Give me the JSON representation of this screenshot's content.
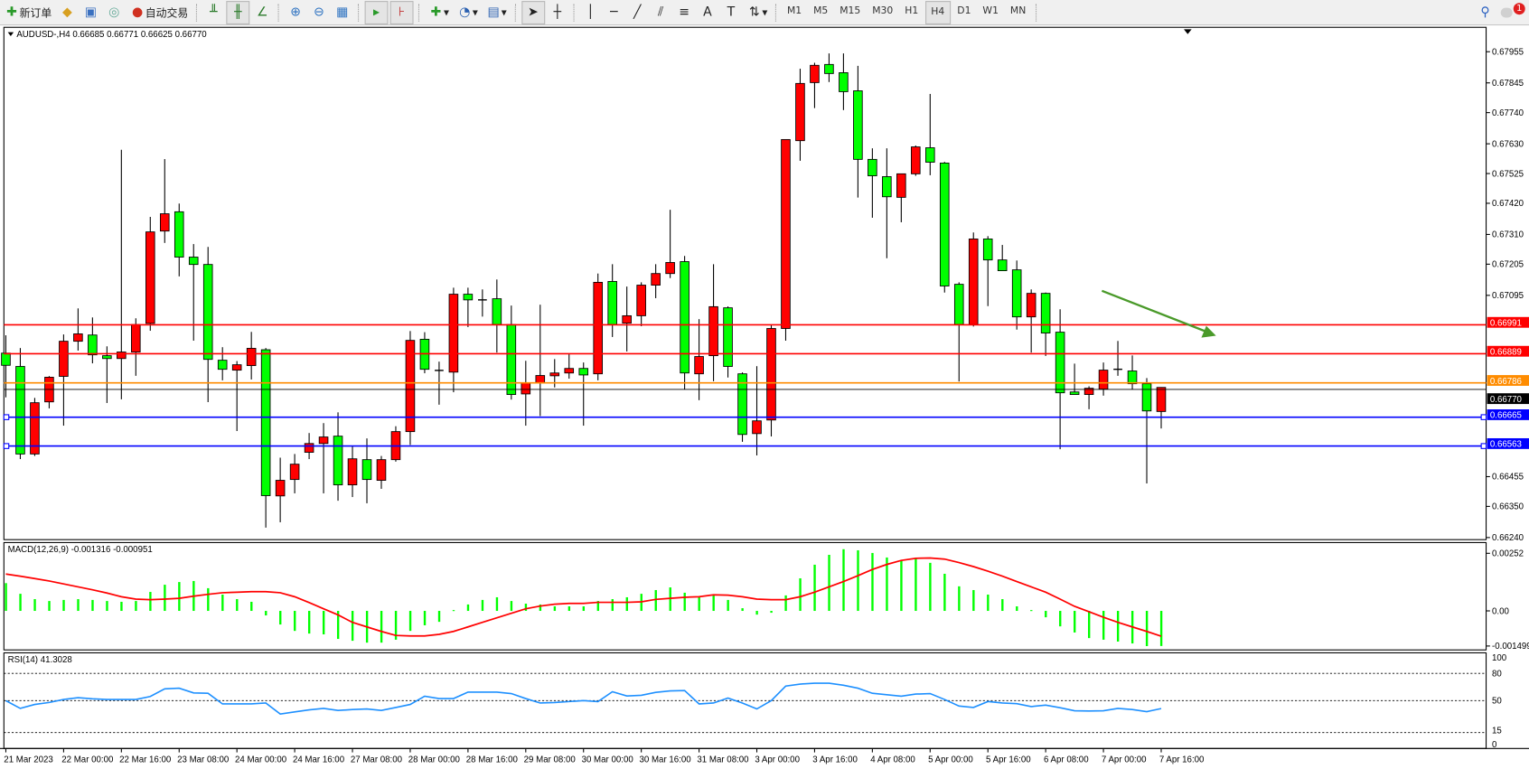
{
  "toolbar": {
    "new_order": "新订单",
    "auto_trading": "自动交易",
    "timeframes": [
      "M1",
      "M5",
      "M15",
      "M30",
      "H1",
      "H4",
      "D1",
      "W1",
      "MN"
    ],
    "active_timeframe": "H4",
    "line_tool_text": "A",
    "notification_count": "1",
    "icons": [
      "new-order-icon",
      "gold-icon",
      "tester-icon",
      "signal-icon",
      "auto-trading-icon",
      "bar-chart-icon",
      "candlestick-icon",
      "line-chart-icon",
      "zoom-in-icon",
      "zoom-out-icon",
      "tile-windows-icon",
      "autoscroll-icon",
      "chart-shift-icon",
      "indicators-icon",
      "periods-icon",
      "templates-icon",
      "cursor-icon",
      "crosshair-icon",
      "vertical-line-icon",
      "horizontal-line-icon",
      "trendline-icon",
      "equidistant-channel-icon",
      "fibonacci-icon",
      "text-icon",
      "text-label-icon",
      "arrows-icon",
      "search-icon",
      "notification-icon"
    ]
  },
  "chart": {
    "header": "AUDUSD-,H4  0.66685 0.66771 0.66625 0.66770",
    "price_labels": [
      "0.67955",
      "0.67845",
      "0.67740",
      "0.67630",
      "0.67525",
      "0.67420",
      "0.67310",
      "0.67205",
      "0.67095",
      "0.66455",
      "0.66350",
      "0.66240"
    ],
    "levels": [
      {
        "price": 0.66991,
        "label": "0.66991",
        "color": "#ff0000"
      },
      {
        "price": 0.66889,
        "label": "0.66889",
        "color": "#ff0000"
      },
      {
        "price": 0.66786,
        "label": "0.66786",
        "color": "#ff8c00"
      },
      {
        "price": 0.66665,
        "label": "0.66665",
        "color": "#0000ff"
      },
      {
        "price": 0.66563,
        "label": "0.66563",
        "color": "#0000ff"
      }
    ],
    "bid": {
      "price": 0.6677,
      "label": "0.66770",
      "color": "#000000"
    },
    "arrow_color": "#4a9a2a",
    "bull_color": "#ff0000",
    "bear_color": "#00ff00",
    "time_labels": [
      "21 Mar 2023",
      "22 Mar 00:00",
      "22 Mar 16:00",
      "23 Mar 08:00",
      "24 Mar 00:00",
      "24 Mar 16:00",
      "27 Mar 08:00",
      "28 Mar 00:00",
      "28 Mar 16:00",
      "29 Mar 08:00",
      "30 Mar 00:00",
      "30 Mar 16:00",
      "31 Mar 08:00",
      "3 Apr 00:00",
      "3 Apr 16:00",
      "4 Apr 08:00",
      "5 Apr 00:00",
      "5 Apr 16:00",
      "6 Apr 08:00",
      "7 Apr 00:00",
      "7 Apr 16:00"
    ]
  },
  "macd": {
    "label": "MACD(12,26,9) -0.001316 -0.000951",
    "axis_labels": [
      "0.00252",
      "0.00",
      "-0.001499"
    ]
  },
  "rsi": {
    "label": "RSI(14) 41.3028",
    "axis_labels": [
      "100",
      "80",
      "50",
      "15",
      "0"
    ]
  },
  "chart_data": {
    "type": "candlestick",
    "symbol": "AUDUSD-",
    "timeframe": "H4",
    "ylim": [
      0.6624,
      0.68
    ],
    "ohlc": [
      [
        0.66891,
        0.66954,
        0.66735,
        0.66848
      ],
      [
        0.66844,
        0.66909,
        0.66517,
        0.66535
      ],
      [
        0.66535,
        0.66733,
        0.66528,
        0.66716
      ],
      [
        0.66719,
        0.6681,
        0.66696,
        0.66806
      ],
      [
        0.66809,
        0.66957,
        0.66635,
        0.66933
      ],
      [
        0.66933,
        0.67049,
        0.669,
        0.66959
      ],
      [
        0.66955,
        0.67017,
        0.66855,
        0.66885
      ],
      [
        0.66882,
        0.66915,
        0.66715,
        0.66872
      ],
      [
        0.66872,
        0.67609,
        0.66728,
        0.66895
      ],
      [
        0.66895,
        0.67014,
        0.66811,
        0.66992
      ],
      [
        0.66996,
        0.67372,
        0.6697,
        0.67319
      ],
      [
        0.67322,
        0.67576,
        0.6728,
        0.67383
      ],
      [
        0.6739,
        0.67419,
        0.67162,
        0.6723
      ],
      [
        0.6723,
        0.67276,
        0.66935,
        0.67204
      ],
      [
        0.67204,
        0.67266,
        0.66718,
        0.66869
      ],
      [
        0.66866,
        0.66912,
        0.66795,
        0.66834
      ],
      [
        0.66831,
        0.66863,
        0.66616,
        0.6685
      ],
      [
        0.66847,
        0.66966,
        0.66798,
        0.66908
      ],
      [
        0.66903,
        0.66909,
        0.66275,
        0.66388
      ],
      [
        0.66387,
        0.66522,
        0.66294,
        0.66442
      ],
      [
        0.66445,
        0.66535,
        0.66396,
        0.66499
      ],
      [
        0.66541,
        0.66609,
        0.66517,
        0.66572
      ],
      [
        0.66572,
        0.66644,
        0.66396,
        0.66595
      ],
      [
        0.66598,
        0.66682,
        0.6637,
        0.66426
      ],
      [
        0.66426,
        0.66563,
        0.66383,
        0.66518
      ],
      [
        0.66515,
        0.6659,
        0.66361,
        0.66445
      ],
      [
        0.66442,
        0.66528,
        0.66412,
        0.66515
      ],
      [
        0.66515,
        0.66633,
        0.66508,
        0.66614
      ],
      [
        0.66614,
        0.66969,
        0.66567,
        0.66936
      ],
      [
        0.6694,
        0.66965,
        0.6682,
        0.66834
      ],
      [
        0.6683,
        0.66861,
        0.66709,
        0.6683
      ],
      [
        0.66824,
        0.67122,
        0.66753,
        0.67099
      ],
      [
        0.67099,
        0.67122,
        0.66983,
        0.67079
      ],
      [
        0.67079,
        0.67116,
        0.6702,
        0.67079
      ],
      [
        0.67083,
        0.67151,
        0.66893,
        0.66992
      ],
      [
        0.66992,
        0.67059,
        0.66727,
        0.66745
      ],
      [
        0.66747,
        0.66864,
        0.66635,
        0.66786
      ],
      [
        0.66786,
        0.67062,
        0.66669,
        0.66812
      ],
      [
        0.66811,
        0.6687,
        0.6677,
        0.66821
      ],
      [
        0.66821,
        0.66887,
        0.66801,
        0.66837
      ],
      [
        0.66837,
        0.66858,
        0.66635,
        0.66814
      ],
      [
        0.66818,
        0.67172,
        0.66795,
        0.67141
      ],
      [
        0.67144,
        0.67205,
        0.66948,
        0.66992
      ],
      [
        0.66997,
        0.67126,
        0.66897,
        0.67023
      ],
      [
        0.67023,
        0.67141,
        0.66986,
        0.67131
      ],
      [
        0.67131,
        0.67205,
        0.67085,
        0.67172
      ],
      [
        0.67172,
        0.67397,
        0.67156,
        0.67211
      ],
      [
        0.67214,
        0.67234,
        0.66763,
        0.66821
      ],
      [
        0.66818,
        0.67011,
        0.66725,
        0.66879
      ],
      [
        0.66882,
        0.67205,
        0.66792,
        0.67055
      ],
      [
        0.67051,
        0.67056,
        0.66805,
        0.66844
      ],
      [
        0.66818,
        0.66823,
        0.66578,
        0.66604
      ],
      [
        0.66607,
        0.66845,
        0.6653,
        0.66652
      ],
      [
        0.66655,
        0.66991,
        0.66597,
        0.66978
      ],
      [
        0.66978,
        0.67645,
        0.66935,
        0.67645
      ],
      [
        0.67641,
        0.67895,
        0.6757,
        0.67843
      ],
      [
        0.67846,
        0.67916,
        0.67756,
        0.67907
      ],
      [
        0.6791,
        0.67949,
        0.67848,
        0.67878
      ],
      [
        0.67881,
        0.67949,
        0.67749,
        0.67814
      ],
      [
        0.67817,
        0.67905,
        0.6744,
        0.67575
      ],
      [
        0.67575,
        0.67614,
        0.67369,
        0.67517
      ],
      [
        0.67514,
        0.67614,
        0.67226,
        0.67443
      ],
      [
        0.67441,
        0.67524,
        0.67353,
        0.67524
      ],
      [
        0.67524,
        0.67624,
        0.67517,
        0.67619
      ],
      [
        0.67616,
        0.67806,
        0.67519,
        0.67565
      ],
      [
        0.67562,
        0.67566,
        0.67105,
        0.67128
      ],
      [
        0.67134,
        0.67141,
        0.66791,
        0.66992
      ],
      [
        0.66992,
        0.67317,
        0.66985,
        0.67294
      ],
      [
        0.67294,
        0.67304,
        0.67057,
        0.6722
      ],
      [
        0.6722,
        0.67273,
        0.67182,
        0.67182
      ],
      [
        0.67185,
        0.67218,
        0.66974,
        0.67019
      ],
      [
        0.67019,
        0.67116,
        0.66893,
        0.67102
      ],
      [
        0.67102,
        0.67105,
        0.66881,
        0.66962
      ],
      [
        0.66965,
        0.67046,
        0.66552,
        0.66751
      ],
      [
        0.66754,
        0.66854,
        0.66745,
        0.66745
      ],
      [
        0.66745,
        0.66774,
        0.66693,
        0.66767
      ],
      [
        0.66764,
        0.66858,
        0.66741,
        0.66831
      ],
      [
        0.66834,
        0.66934,
        0.66811,
        0.66834
      ],
      [
        0.66828,
        0.66883,
        0.66764,
        0.66783
      ],
      [
        0.66783,
        0.66803,
        0.66431,
        0.66687
      ],
      [
        0.66685,
        0.66771,
        0.66625,
        0.6677
      ]
    ],
    "macd_histogram": [
      0.00104,
      0.00064,
      0.00044,
      0.00037,
      0.00041,
      0.00044,
      0.00041,
      0.00037,
      0.00034,
      0.00037,
      0.00071,
      0.00098,
      0.00108,
      0.00112,
      0.00085,
      0.00061,
      0.00044,
      0.00034,
      -0.00017,
      -0.00051,
      -0.00075,
      -0.00085,
      -0.00088,
      -0.00105,
      -0.00112,
      -0.00119,
      -0.00119,
      -0.00108,
      -0.00075,
      -0.00054,
      -0.00041,
      3e-05,
      0.00024,
      0.00041,
      0.00051,
      0.00037,
      0.00027,
      0.00024,
      0.00017,
      0.00017,
      0.00017,
      0.00037,
      0.00044,
      0.00051,
      0.00064,
      0.00078,
      0.00088,
      0.00068,
      0.00054,
      0.00058,
      0.00041,
      0.0001,
      -0.00014,
      -7e-05,
      0.00058,
      0.00122,
      0.00173,
      0.0021,
      0.00231,
      0.00227,
      0.00217,
      0.002,
      0.0019,
      0.00197,
      0.0018,
      0.00139,
      0.00092,
      0.00078,
      0.00061,
      0.00044,
      0.00017,
      3e-05,
      -0.00024,
      -0.00058,
      -0.00081,
      -0.00102,
      -0.00108,
      -0.00115,
      -0.00122,
      -0.00132,
      -0.001316
    ],
    "macd_signal": [
      0.00138,
      0.0013,
      0.00121,
      0.00112,
      0.00101,
      0.0009,
      0.00079,
      0.00067,
      0.00053,
      0.00044,
      0.00042,
      0.00044,
      0.00047,
      0.00055,
      0.00062,
      0.00068,
      0.0007,
      0.00072,
      0.00072,
      0.00068,
      0.00053,
      0.00031,
      8e-05,
      -0.00015,
      -0.00043,
      -0.0006,
      -0.00077,
      -0.00092,
      -0.00094,
      -0.00094,
      -0.00088,
      -0.00077,
      -0.0006,
      -0.00043,
      -0.00026,
      -9e-05,
      8e-05,
      0.00018,
      0.00025,
      0.00028,
      0.00028,
      0.00032,
      0.00032,
      0.00032,
      0.00034,
      0.00043,
      0.00047,
      0.00051,
      0.00053,
      0.0006,
      0.00059,
      0.00053,
      0.00044,
      0.00042,
      0.00042,
      0.00053,
      0.0007,
      0.0009,
      0.0011,
      0.00132,
      0.00155,
      0.00174,
      0.00189,
      0.00197,
      0.00198,
      0.00194,
      0.00181,
      0.00166,
      0.00149,
      0.0013,
      0.0011,
      0.0009,
      0.0007,
      0.00044,
      0.00017,
      -3e-05,
      -0.00024,
      -0.00043,
      -0.0006,
      -0.00077,
      -0.000951
    ],
    "macd_ylim": [
      -0.001499,
      0.00252
    ],
    "rsi": [
      50,
      41.5,
      45.8,
      48,
      51.3,
      53.3,
      52,
      51.3,
      51.3,
      51.3,
      54.6,
      63,
      63.7,
      58.5,
      58.1,
      46.4,
      46.4,
      46.4,
      47.4,
      35.3,
      37.6,
      39.9,
      41.5,
      39.3,
      40.2,
      40.9,
      39.3,
      42.5,
      45.8,
      54.9,
      52.3,
      52.3,
      59.4,
      59.4,
      59.4,
      57.8,
      52.3,
      47.4,
      48,
      49,
      50,
      49,
      59.8,
      55.2,
      55.9,
      59.1,
      60.7,
      61.1,
      46.4,
      47.4,
      52.9,
      47.4,
      40.9,
      50,
      66,
      68.2,
      69.2,
      69.2,
      66.9,
      63.7,
      58.1,
      56.5,
      54.9,
      57.2,
      57.8,
      51.3,
      44.1,
      42.5,
      49,
      47.4,
      46.7,
      43.5,
      45.1,
      42.2,
      38.9,
      38.6,
      38.9,
      41.5,
      40.2,
      37.9,
      41.3
    ],
    "rsi_levels": [
      80,
      50,
      15
    ],
    "rsi_ylim": [
      0,
      100
    ],
    "grid": false
  }
}
